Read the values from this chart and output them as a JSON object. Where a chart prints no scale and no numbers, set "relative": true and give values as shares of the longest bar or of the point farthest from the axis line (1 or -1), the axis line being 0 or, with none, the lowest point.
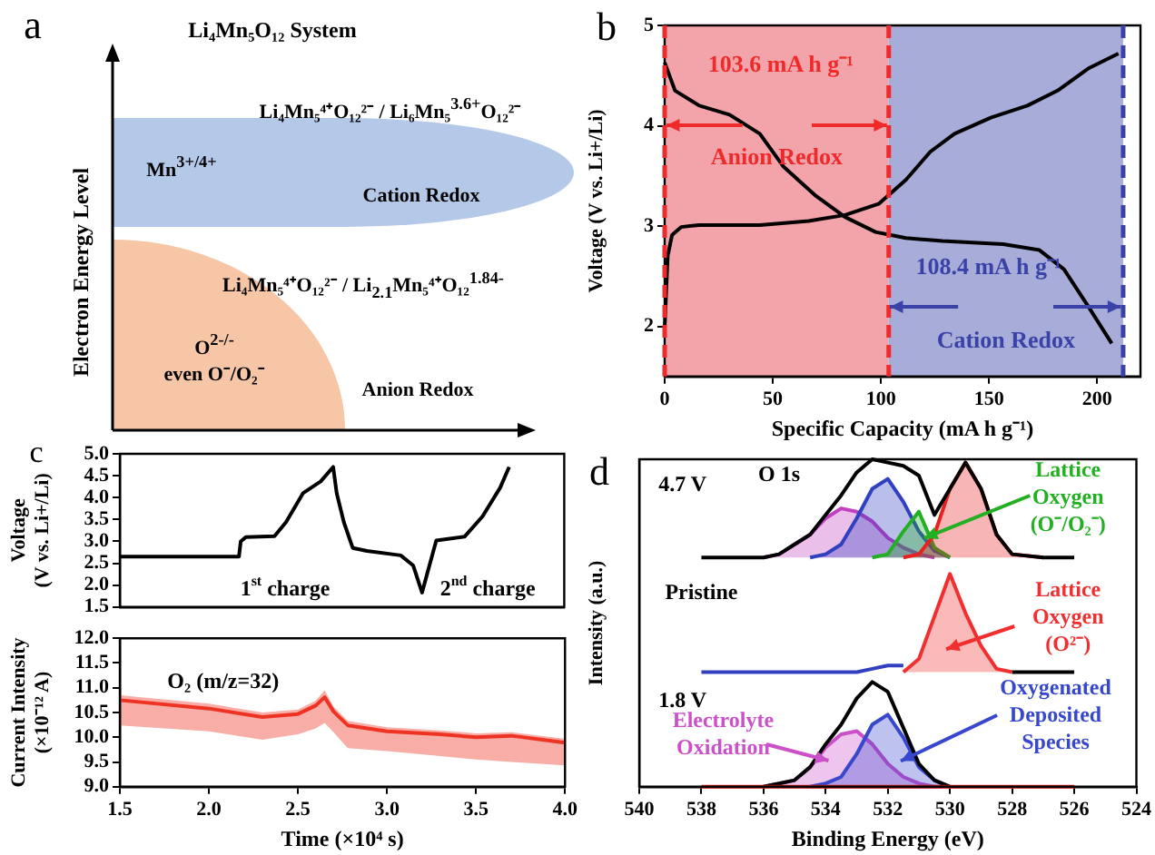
{
  "chart_data": [
    {
      "type": "other",
      "title": "Li₄Mn₅O₁₂ System",
      "ylabel": "Electron Energy Level",
      "annotations": [
        "a",
        "Li₄Mn₅⁴⁺O₁₂²⁻ / Li₆Mn₅$^{3.6+}$O₁₂²⁻",
        "Mn$^{3+/4+}$",
        "Cation Redox",
        "Li₄Mn₅⁴⁺O₁₂²⁻ / Li$_{2.1}$Mn₅⁴⁺O₁₂$^{1.84-}$",
        "O$^{2-/-}$",
        "even O⁻/O₂⁻",
        "Anion Redox"
      ]
    },
    {
      "type": "line",
      "xlabel": "Specific Capacity (mA h g⁻¹)",
      "ylabel": "Voltage (V vs. Li+/Li)",
      "xlim": [
        0,
        220
      ],
      "xticks": [
        0,
        50,
        100,
        150,
        200
      ],
      "ylim": [
        1.5,
        5
      ],
      "yticks": [
        2,
        3,
        4,
        5
      ],
      "annotations": [
        "b"
      ],
      "bands": [
        {
          "axis": "x",
          "from": 0,
          "to": 103.6,
          "label": "Anion Redox",
          "color": "#f3a3aa"
        },
        {
          "axis": "x",
          "from": 103.6,
          "to": 212,
          "label": "Cation Redox",
          "color": "#a7acd9"
        }
      ],
      "ref_lines": [
        {
          "axis": "x",
          "value": 0,
          "color": "#ee2a2a",
          "line_style": "dashed"
        },
        {
          "axis": "x",
          "value": 103.6,
          "label": "103.6 mA h g⁻¹",
          "color": "#ee2a2a",
          "line_style": "dashed"
        },
        {
          "axis": "x",
          "value": 212,
          "label": "108.4 mA h g⁻¹",
          "color": "#3a42a8",
          "line_style": "dashed"
        }
      ],
      "series": [
        {
          "color": "#000000",
          "x": [
            0,
            1.4,
            3.4,
            7.6,
            16,
            44,
            66.6,
            83.4,
            98.9,
            111.5,
            122.8,
            134,
            150.8,
            167.7,
            181.7,
            195.8,
            209.8
          ],
          "values": [
            1.99,
            2.7,
            2.91,
            2.99,
            3.01,
            3.01,
            3.05,
            3.11,
            3.22,
            3.46,
            3.74,
            3.92,
            4.08,
            4.2,
            4.35,
            4.57,
            4.72
          ]
        },
        {
          "color": "#000000",
          "x": [
            0,
            4.8,
            16,
            30,
            44,
            55,
            69.4,
            83.4,
            97.5,
            111.5,
            128.4,
            156.5,
            173.3,
            184.6,
            195.8,
            206.7
          ],
          "values": [
            4.63,
            4.35,
            4.2,
            4.11,
            3.92,
            3.59,
            3.31,
            3.09,
            2.94,
            2.88,
            2.85,
            2.82,
            2.76,
            2.57,
            2.2,
            1.83
          ]
        }
      ]
    },
    {
      "type": "line",
      "ylabel": "Voltage (V vs. Li+/Li)",
      "xlim": [
        1.5,
        4.0
      ],
      "ylim": [
        1.5,
        5.0
      ],
      "yticks": [
        1.5,
        {
          "value": 2,
          "label": "2.0"
        },
        2.5,
        {
          "value": 3,
          "label": "3.0"
        },
        3.5,
        {
          "value": 4,
          "label": "4.0"
        },
        4.5,
        {
          "value": 5,
          "label": "5.0"
        }
      ],
      "tick_labels": "y",
      "annotations": [
        "c",
        "1$^{st}$ charge",
        "2$^{nd}$ charge"
      ],
      "series": [
        {
          "color": "#000000",
          "x": [
            1.5,
            2.17,
            2.18,
            2.21,
            2.37,
            2.435,
            2.53,
            2.63,
            2.7,
            2.72,
            2.76,
            2.81,
            2.89,
            3.08,
            3.15,
            3.2,
            3.28,
            3.44,
            3.54,
            3.64,
            3.69
          ],
          "values": [
            2.65,
            2.65,
            3.0,
            3.1,
            3.12,
            3.44,
            4.1,
            4.37,
            4.7,
            4.1,
            3.44,
            2.85,
            2.78,
            2.68,
            2.45,
            1.83,
            3.02,
            3.11,
            3.57,
            4.23,
            4.7
          ]
        }
      ]
    },
    {
      "type": "line",
      "xlabel": "Time (×10⁴ s)",
      "ylabel": "Current Intensity (×10⁻¹² A)",
      "xlim": [
        1.5,
        4.0
      ],
      "xticks": [
        1.5,
        {
          "value": 2,
          "label": "2.0"
        },
        2.5,
        {
          "value": 3,
          "label": "3.0"
        },
        3.5,
        {
          "value": 4,
          "label": "4.0"
        }
      ],
      "ylim": [
        9.0,
        12.0
      ],
      "yticks": [
        {
          "value": 9,
          "label": "9.0"
        },
        9.5,
        {
          "value": 10,
          "label": "10.0"
        },
        10.5,
        {
          "value": 11,
          "label": "11.0"
        },
        11.5,
        {
          "value": 12,
          "label": "12.0"
        }
      ],
      "annotations": [
        "O₂ (m/z=32)"
      ],
      "x": [
        1.5,
        2.0,
        2.3,
        2.5,
        2.6,
        2.65,
        2.7,
        2.78,
        3.0,
        3.3,
        3.5,
        3.7,
        4.0
      ],
      "series": [
        {
          "color": "#ee3322",
          "values": [
            10.75,
            10.58,
            10.41,
            10.47,
            10.64,
            10.81,
            10.52,
            10.24,
            10.12,
            10.06,
            10.0,
            10.03,
            9.89
          ],
          "upper": [
            10.85,
            10.68,
            10.5,
            10.56,
            10.74,
            10.95,
            10.62,
            10.33,
            10.2,
            10.14,
            10.08,
            10.1,
            9.97
          ],
          "lower": [
            10.24,
            10.12,
            9.95,
            10.06,
            10.18,
            10.29,
            10.1,
            9.78,
            9.72,
            9.62,
            9.55,
            9.5,
            9.43
          ]
        }
      ]
    },
    {
      "type": "line",
      "relative": true,
      "xlabel": "Binding Energy (eV)",
      "ylabel": "Intensity (a.u.)",
      "xlim": [
        540,
        524
      ],
      "xticks": [
        540,
        538,
        536,
        534,
        532,
        530,
        528,
        526,
        524
      ],
      "annotations": [
        "d",
        "O 1s",
        "4.7 V",
        "Pristine",
        "1.8 V"
      ],
      "x": [
        538,
        537,
        536,
        535.5,
        535,
        534.5,
        534,
        533.5,
        533,
        532.5,
        532,
        531.5,
        531,
        530.5,
        530,
        529.5,
        529,
        528.5,
        528,
        527,
        526
      ],
      "series": [
        {
          "color": "#000000",
          "values": [
            0.7,
            0.7,
            0.7,
            0.71,
            0.74,
            0.77,
            0.83,
            0.89,
            0.96,
            1.0,
            0.99,
            0.98,
            0.95,
            0.83,
            0.91,
            0.99,
            0.91,
            0.77,
            0.71,
            0.7,
            0.7
          ]
        },
        {
          "type": "area",
          "color": "#c040c0",
          "values": [
            null,
            null,
            0.7,
            0.71,
            0.74,
            0.77,
            0.82,
            0.85,
            0.84,
            0.81,
            0.76,
            0.73,
            0.71,
            0.7,
            null,
            null,
            null,
            null,
            null,
            null,
            null
          ]
        },
        {
          "type": "area",
          "color": "#3040c0",
          "values": [
            null,
            null,
            null,
            null,
            null,
            0.7,
            0.71,
            0.74,
            0.82,
            0.91,
            0.94,
            0.87,
            0.78,
            0.72,
            0.7,
            null,
            null,
            null,
            null,
            null,
            null
          ]
        },
        {
          "type": "area",
          "name": "Lattice Oxygen (O⁻/O₂⁻)",
          "color": "#22b022",
          "values": [
            null,
            null,
            null,
            null,
            null,
            null,
            null,
            null,
            null,
            0.7,
            0.71,
            0.78,
            0.84,
            0.73,
            0.7,
            null,
            null,
            null,
            null,
            null,
            null
          ]
        },
        {
          "type": "area",
          "color": "#e82020",
          "values": [
            null,
            null,
            null,
            null,
            null,
            null,
            null,
            null,
            null,
            null,
            null,
            0.7,
            0.71,
            0.77,
            0.91,
            0.99,
            0.91,
            0.77,
            0.71,
            0.7,
            null
          ]
        },
        {
          "color": "#000000",
          "values": [
            null,
            null,
            null,
            null,
            null,
            null,
            null,
            null,
            null,
            null,
            null,
            null,
            null,
            null,
            null,
            null,
            null,
            null,
            0.35,
            0.35,
            0.35
          ]
        },
        {
          "color": "#3040c0",
          "values": [
            0.35,
            0.35,
            0.35,
            0.35,
            0.35,
            0.35,
            0.35,
            0.35,
            0.35,
            0.36,
            0.37,
            0.37,
            null,
            null,
            null,
            null,
            null,
            null,
            null,
            null,
            null
          ]
        },
        {
          "type": "area",
          "name": "Lattice Oxygen (O²⁻)",
          "color": "#f03030",
          "values": [
            null,
            null,
            null,
            null,
            null,
            null,
            null,
            null,
            null,
            null,
            null,
            0.35,
            0.39,
            0.52,
            0.65,
            0.53,
            0.43,
            0.36,
            0.35,
            null,
            null
          ]
        },
        {
          "color": "#000000",
          "values": [
            null,
            null,
            0,
            0.01,
            0.02,
            0.06,
            0.13,
            0.19,
            0.27,
            0.32,
            0.29,
            0.18,
            0.07,
            0.02,
            0,
            null,
            null,
            null,
            null,
            null,
            null
          ]
        },
        {
          "type": "area",
          "name": "Electrolyte Oxidation",
          "color": "#cc50c8",
          "values": [
            null,
            null,
            0,
            0.01,
            0.02,
            0.06,
            0.12,
            0.16,
            0.17,
            0.13,
            0.07,
            0.03,
            0.01,
            0,
            0,
            null,
            null,
            null,
            null,
            null,
            null
          ]
        },
        {
          "type": "area",
          "name": "Oxygenated Deposited Species",
          "color": "#3848cc",
          "values": [
            null,
            null,
            null,
            null,
            null,
            0,
            0.01,
            0.03,
            0.1,
            0.19,
            0.22,
            0.15,
            0.06,
            0.02,
            0,
            null,
            null,
            null,
            null,
            null,
            null
          ]
        },
        {
          "color": "#e82020",
          "values": [
            0,
            0,
            0,
            0,
            0,
            0,
            0,
            0,
            0,
            0,
            0,
            0,
            0,
            0,
            0,
            0,
            0,
            0,
            0,
            0,
            0
          ]
        }
      ]
    }
  ]
}
